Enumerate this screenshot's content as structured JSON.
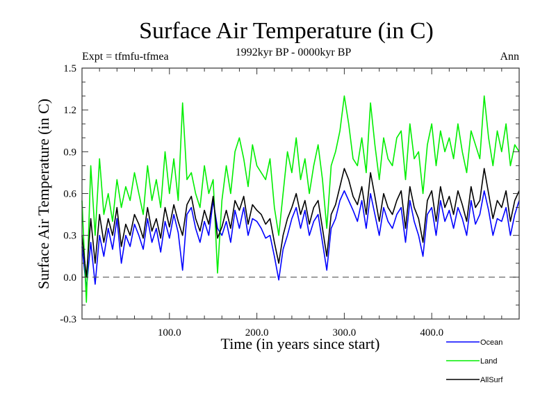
{
  "chart_data": {
    "type": "line",
    "title": "Surface Air Temperature (in C)",
    "subtitle_left": "Expt = tfmfu-tfmea",
    "subtitle_center": "1992kyr BP - 0000kyr BP",
    "subtitle_right": "Ann",
    "xlabel": "Time (in years since start)",
    "ylabel": "Surface Air Temperature (in C)",
    "xlim": [
      0,
      500
    ],
    "ylim": [
      -0.3,
      1.5
    ],
    "x_ticks": [
      100,
      200,
      300,
      400
    ],
    "x_tick_labels": [
      "100.0",
      "200.0",
      "300.0",
      "400.0"
    ],
    "x_minor_step": 20,
    "y_ticks": [
      -0.3,
      0.0,
      0.3,
      0.6,
      0.9,
      1.2,
      1.5
    ],
    "y_tick_labels": [
      "-0.3",
      "0.0",
      "0.3",
      "0.6",
      "0.9",
      "1.2",
      "1.5"
    ],
    "y_minor_step": 0.1,
    "reference_line": {
      "y": 0.0,
      "style": "dashed",
      "color": "#555555"
    },
    "grid": false,
    "legend": {
      "placement": "bottom-right, outside plot"
    },
    "x": [
      0,
      5,
      10,
      15,
      20,
      25,
      30,
      35,
      40,
      45,
      50,
      55,
      60,
      65,
      70,
      75,
      80,
      85,
      90,
      95,
      100,
      105,
      110,
      115,
      120,
      125,
      130,
      135,
      140,
      145,
      150,
      155,
      160,
      165,
      170,
      175,
      180,
      185,
      190,
      195,
      200,
      205,
      210,
      215,
      220,
      225,
      230,
      235,
      240,
      245,
      250,
      255,
      260,
      265,
      270,
      275,
      280,
      285,
      290,
      295,
      300,
      305,
      310,
      315,
      320,
      325,
      330,
      335,
      340,
      345,
      350,
      355,
      360,
      365,
      370,
      375,
      380,
      385,
      390,
      395,
      400,
      405,
      410,
      415,
      420,
      425,
      430,
      435,
      440,
      445,
      450,
      455,
      460,
      465,
      470,
      475,
      480,
      485,
      490,
      495,
      500
    ],
    "series": [
      {
        "name": "Ocean",
        "color": "#0000ff",
        "values": [
          0.22,
          -0.08,
          0.25,
          -0.05,
          0.3,
          0.15,
          0.35,
          0.2,
          0.42,
          0.1,
          0.3,
          0.22,
          0.38,
          0.3,
          0.2,
          0.42,
          0.25,
          0.35,
          0.18,
          0.4,
          0.28,
          0.45,
          0.32,
          0.05,
          0.45,
          0.5,
          0.35,
          0.25,
          0.4,
          0.3,
          0.55,
          0.35,
          0.3,
          0.4,
          0.25,
          0.48,
          0.35,
          0.5,
          0.3,
          0.42,
          0.4,
          0.35,
          0.28,
          0.3,
          0.15,
          -0.02,
          0.2,
          0.3,
          0.42,
          0.5,
          0.35,
          0.48,
          0.3,
          0.4,
          0.45,
          0.25,
          0.05,
          0.35,
          0.42,
          0.55,
          0.62,
          0.55,
          0.48,
          0.4,
          0.55,
          0.35,
          0.6,
          0.45,
          0.3,
          0.5,
          0.4,
          0.35,
          0.45,
          0.5,
          0.25,
          0.55,
          0.4,
          0.3,
          0.15,
          0.45,
          0.5,
          0.3,
          0.55,
          0.4,
          0.48,
          0.35,
          0.5,
          0.42,
          0.3,
          0.55,
          0.38,
          0.45,
          0.62,
          0.48,
          0.3,
          0.42,
          0.4,
          0.5,
          0.3,
          0.45,
          0.55
        ]
      },
      {
        "name": "Land",
        "color": "#00ee00",
        "values": [
          0.55,
          -0.18,
          0.8,
          0.3,
          0.85,
          0.45,
          0.6,
          0.4,
          0.7,
          0.5,
          0.65,
          0.55,
          0.75,
          0.6,
          0.45,
          0.8,
          0.55,
          0.7,
          0.5,
          0.9,
          0.6,
          0.85,
          0.55,
          1.25,
          0.7,
          0.75,
          0.6,
          0.5,
          0.8,
          0.6,
          0.7,
          0.03,
          0.55,
          0.8,
          0.6,
          0.9,
          1.0,
          0.85,
          0.65,
          0.95,
          0.8,
          0.75,
          0.7,
          0.85,
          0.5,
          0.3,
          0.6,
          0.9,
          0.75,
          1.0,
          0.7,
          0.85,
          0.6,
          0.8,
          0.95,
          0.7,
          0.35,
          0.8,
          0.9,
          1.05,
          1.3,
          1.1,
          0.85,
          0.8,
          1.0,
          0.75,
          1.25,
          0.95,
          0.7,
          1.0,
          0.85,
          0.8,
          1.0,
          1.05,
          0.7,
          1.1,
          0.85,
          0.9,
          0.6,
          0.95,
          1.1,
          0.8,
          1.05,
          0.9,
          1.0,
          0.85,
          1.1,
          0.9,
          0.75,
          1.05,
          0.95,
          0.85,
          1.3,
          1.0,
          0.8,
          1.05,
          0.9,
          1.1,
          0.8,
          0.95,
          0.9
        ]
      },
      {
        "name": "AllSurf",
        "color": "#000000",
        "values": [
          0.3,
          0.0,
          0.42,
          0.1,
          0.45,
          0.25,
          0.42,
          0.3,
          0.5,
          0.22,
          0.38,
          0.3,
          0.45,
          0.38,
          0.28,
          0.5,
          0.33,
          0.42,
          0.28,
          0.5,
          0.36,
          0.52,
          0.4,
          0.3,
          0.52,
          0.58,
          0.42,
          0.33,
          0.48,
          0.38,
          0.58,
          0.28,
          0.36,
          0.48,
          0.35,
          0.55,
          0.48,
          0.58,
          0.38,
          0.52,
          0.48,
          0.45,
          0.38,
          0.42,
          0.25,
          0.1,
          0.3,
          0.42,
          0.5,
          0.6,
          0.45,
          0.55,
          0.38,
          0.5,
          0.55,
          0.35,
          0.15,
          0.45,
          0.52,
          0.65,
          0.78,
          0.7,
          0.58,
          0.52,
          0.65,
          0.45,
          0.75,
          0.58,
          0.4,
          0.6,
          0.5,
          0.45,
          0.55,
          0.62,
          0.35,
          0.65,
          0.5,
          0.42,
          0.25,
          0.55,
          0.62,
          0.4,
          0.65,
          0.5,
          0.58,
          0.45,
          0.62,
          0.52,
          0.4,
          0.65,
          0.5,
          0.55,
          0.78,
          0.6,
          0.42,
          0.55,
          0.5,
          0.62,
          0.4,
          0.55,
          0.62
        ]
      }
    ]
  }
}
